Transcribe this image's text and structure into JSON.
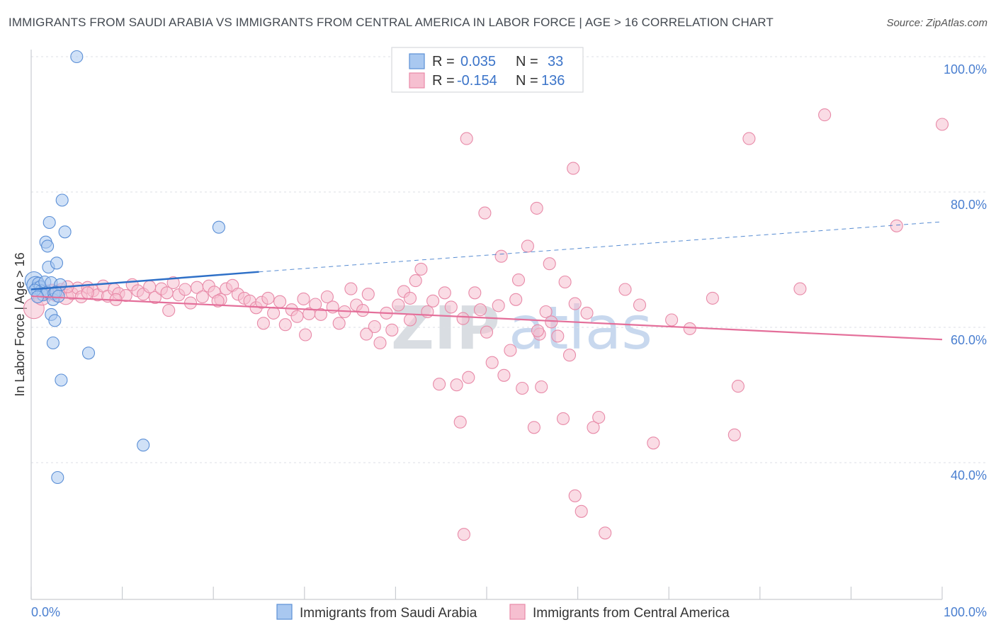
{
  "title": "IMMIGRANTS FROM SAUDI ARABIA VS IMMIGRANTS FROM CENTRAL AMERICA IN LABOR FORCE | AGE > 16 CORRELATION CHART",
  "source": "Source: ZipAtlas.com",
  "watermark": {
    "zip": "ZIP",
    "atlas": "atlas"
  },
  "colors": {
    "blue_fill": "#a9c8f0",
    "blue_stroke": "#5b8fd6",
    "blue_line": "#2d6fc7",
    "pink_fill": "#f6bfd0",
    "pink_stroke": "#e88aa8",
    "pink_line": "#e46f9a",
    "axis_label": "#4a7fd0",
    "grid": "#dcdfe4"
  },
  "legend_top": {
    "rows": [
      {
        "r_label": "R = ",
        "r_value": "0.035",
        "n_label": "N = ",
        "n_value": "33",
        "series": "blue"
      },
      {
        "r_label": "R = ",
        "r_value": "-0.154",
        "n_label": "N = ",
        "n_value": "136",
        "series": "pink"
      }
    ]
  },
  "chart_data": {
    "type": "scatter",
    "title": "IMMIGRANTS FROM SAUDI ARABIA VS IMMIGRANTS FROM CENTRAL AMERICA IN LABOR FORCE | AGE > 16 CORRELATION CHART",
    "xlabel": "",
    "ylabel": "In Labor Force | Age > 16",
    "xlim": [
      0,
      100
    ],
    "ylim": [
      18,
      102
    ],
    "x_tick_labels": [
      "0.0%",
      "100.0%"
    ],
    "y_ticks": [
      40,
      60,
      80,
      100
    ],
    "y_tick_labels": [
      "40.0%",
      "60.0%",
      "80.0%",
      "100.0%"
    ],
    "grid": "horizontal dashed",
    "series": [
      {
        "name": "Immigrants from Saudi Arabia",
        "color": "blue",
        "R": 0.035,
        "N": 33,
        "trend": {
          "x0": 0,
          "y0": 65.6,
          "x1": 25,
          "y1": 68.2,
          "dash_to_x": 100,
          "dash_to_y": 75.6
        },
        "points": [
          [
            0.3,
            66.9,
            14
          ],
          [
            0.5,
            66.2,
            14
          ],
          [
            0.6,
            65.8,
            10
          ],
          [
            0.8,
            66.5,
            10
          ],
          [
            1.0,
            66.0,
            10
          ],
          [
            1.1,
            65.4,
            10
          ],
          [
            1.3,
            64.8,
            10
          ],
          [
            1.5,
            66.7,
            10
          ],
          [
            1.8,
            65.2,
            10
          ],
          [
            0.4,
            65.5,
            10
          ],
          [
            0.7,
            64.5,
            10
          ],
          [
            2.2,
            66.6,
            10
          ],
          [
            2.5,
            65.0,
            10
          ],
          [
            3.2,
            66.3,
            10
          ],
          [
            1.6,
            72.6,
            10
          ],
          [
            1.8,
            72.0,
            10
          ],
          [
            1.9,
            68.9,
            10
          ],
          [
            2.8,
            69.5,
            10
          ],
          [
            2.0,
            75.5,
            10
          ],
          [
            3.4,
            78.8,
            10
          ],
          [
            3.7,
            74.1,
            10
          ],
          [
            2.2,
            61.9,
            10
          ],
          [
            2.4,
            57.7,
            10
          ],
          [
            3.3,
            52.2,
            10
          ],
          [
            6.3,
            56.2,
            10
          ],
          [
            5.0,
            100.0,
            10
          ],
          [
            12.3,
            42.6,
            10
          ],
          [
            2.9,
            37.8,
            10
          ],
          [
            20.6,
            74.8,
            10
          ],
          [
            2.4,
            64.1,
            10
          ],
          [
            2.6,
            61.0,
            10
          ],
          [
            2.7,
            65.2,
            10
          ],
          [
            3.0,
            64.6,
            10
          ]
        ]
      },
      {
        "name": "Immigrants from Central America",
        "color": "pink",
        "R": -0.154,
        "N": 136,
        "trend": {
          "x0": 0,
          "y0": 64.6,
          "x1": 100,
          "y1": 58.2
        },
        "points": [
          [
            0.3,
            62.8,
            16
          ],
          [
            1.2,
            64.6,
            14
          ],
          [
            2.0,
            65.2,
            12
          ],
          [
            2.7,
            64.7,
            10
          ],
          [
            3.3,
            65.6,
            10
          ],
          [
            3.8,
            64.5,
            12
          ],
          [
            4.5,
            65.0,
            10
          ],
          [
            5.1,
            65.8,
            10
          ],
          [
            5.5,
            64.5,
            10
          ],
          [
            6.2,
            65.9,
            10
          ],
          [
            6.8,
            65.4,
            10
          ],
          [
            7.3,
            64.8,
            10
          ],
          [
            7.9,
            66.1,
            10
          ],
          [
            8.4,
            64.6,
            10
          ],
          [
            9.1,
            65.6,
            10
          ],
          [
            9.6,
            65.0,
            10
          ],
          [
            10.4,
            64.7,
            10
          ],
          [
            11.1,
            66.3,
            10
          ],
          [
            11.7,
            65.4,
            10
          ],
          [
            12.3,
            64.9,
            10
          ],
          [
            13.0,
            66.0,
            10
          ],
          [
            13.6,
            64.4,
            10
          ],
          [
            14.3,
            65.7,
            10
          ],
          [
            14.9,
            65.1,
            10
          ],
          [
            15.6,
            66.6,
            10
          ],
          [
            16.2,
            64.8,
            10
          ],
          [
            16.9,
            65.6,
            10
          ],
          [
            17.5,
            63.6,
            10
          ],
          [
            18.2,
            65.9,
            10
          ],
          [
            18.8,
            64.5,
            10
          ],
          [
            19.5,
            66.1,
            10
          ],
          [
            20.1,
            65.2,
            10
          ],
          [
            20.8,
            64.1,
            10
          ],
          [
            21.4,
            65.7,
            10
          ],
          [
            22.1,
            66.2,
            10
          ],
          [
            22.7,
            64.9,
            10
          ],
          [
            23.4,
            64.3,
            10
          ],
          [
            24.0,
            63.9,
            10
          ],
          [
            24.7,
            62.9,
            10
          ],
          [
            25.3,
            63.7,
            10
          ],
          [
            26.0,
            64.3,
            10
          ],
          [
            26.6,
            62.1,
            10
          ],
          [
            27.3,
            63.8,
            10
          ],
          [
            27.9,
            60.4,
            10
          ],
          [
            28.6,
            62.6,
            10
          ],
          [
            29.2,
            61.6,
            10
          ],
          [
            29.9,
            64.2,
            10
          ],
          [
            30.5,
            62.0,
            10
          ],
          [
            31.2,
            63.4,
            10
          ],
          [
            31.8,
            61.9,
            10
          ],
          [
            32.5,
            64.5,
            10
          ],
          [
            33.1,
            63.0,
            10
          ],
          [
            33.8,
            60.6,
            10
          ],
          [
            34.4,
            62.3,
            10
          ],
          [
            35.1,
            65.7,
            10
          ],
          [
            35.7,
            63.3,
            10
          ],
          [
            36.4,
            62.5,
            10
          ],
          [
            37.0,
            64.9,
            10
          ],
          [
            37.7,
            60.1,
            10
          ],
          [
            38.3,
            57.7,
            10
          ],
          [
            39.0,
            62.1,
            10
          ],
          [
            39.6,
            59.6,
            10
          ],
          [
            40.3,
            63.3,
            10
          ],
          [
            40.9,
            65.3,
            10
          ],
          [
            41.6,
            64.3,
            10
          ],
          [
            42.2,
            66.9,
            10
          ],
          [
            42.8,
            68.6,
            10
          ],
          [
            43.5,
            62.3,
            10
          ],
          [
            44.1,
            63.9,
            10
          ],
          [
            44.8,
            51.6,
            10
          ],
          [
            45.4,
            65.1,
            10
          ],
          [
            46.1,
            63.0,
            10
          ],
          [
            46.7,
            51.5,
            10
          ],
          [
            47.4,
            61.3,
            10
          ],
          [
            48.0,
            52.6,
            10
          ],
          [
            48.7,
            65.1,
            10
          ],
          [
            49.3,
            62.6,
            10
          ],
          [
            50.0,
            59.3,
            10
          ],
          [
            50.6,
            54.8,
            10
          ],
          [
            51.3,
            63.2,
            10
          ],
          [
            51.9,
            52.9,
            10
          ],
          [
            52.6,
            56.6,
            10
          ],
          [
            53.2,
            64.1,
            10
          ],
          [
            53.9,
            51.0,
            10
          ],
          [
            54.5,
            72.0,
            10
          ],
          [
            55.2,
            45.2,
            10
          ],
          [
            55.8,
            59.0,
            10
          ],
          [
            56.5,
            62.3,
            10
          ],
          [
            57.1,
            60.8,
            10
          ],
          [
            57.8,
            58.7,
            10
          ],
          [
            58.4,
            46.5,
            10
          ],
          [
            59.1,
            55.9,
            10
          ],
          [
            59.7,
            63.5,
            10
          ],
          [
            60.4,
            32.8,
            10
          ],
          [
            61.0,
            62.1,
            10
          ],
          [
            61.7,
            45.2,
            10
          ],
          [
            62.3,
            46.7,
            10
          ],
          [
            63.0,
            29.6,
            10
          ],
          [
            65.2,
            65.6,
            10
          ],
          [
            66.8,
            63.3,
            10
          ],
          [
            68.3,
            42.9,
            10
          ],
          [
            70.3,
            61.1,
            10
          ],
          [
            72.3,
            59.8,
            10
          ],
          [
            74.8,
            64.3,
            10
          ],
          [
            77.2,
            44.1,
            10
          ],
          [
            77.6,
            51.3,
            10
          ],
          [
            78.8,
            87.9,
            10
          ],
          [
            84.4,
            65.7,
            10
          ],
          [
            87.1,
            91.4,
            10
          ],
          [
            95.0,
            75.0,
            10
          ],
          [
            100.0,
            90.0,
            10
          ],
          [
            47.8,
            87.9,
            10
          ],
          [
            59.5,
            83.5,
            10
          ],
          [
            49.8,
            76.9,
            10
          ],
          [
            55.5,
            77.6,
            10
          ],
          [
            51.6,
            70.5,
            10
          ],
          [
            53.5,
            67.0,
            10
          ],
          [
            56.9,
            69.4,
            10
          ],
          [
            58.6,
            66.7,
            10
          ],
          [
            47.1,
            46.0,
            10
          ],
          [
            47.5,
            29.4,
            10
          ],
          [
            56.0,
            51.2,
            10
          ],
          [
            59.7,
            35.1,
            10
          ],
          [
            55.6,
            59.5,
            10
          ],
          [
            41.6,
            61.1,
            10
          ],
          [
            36.8,
            59.0,
            10
          ],
          [
            25.5,
            60.6,
            10
          ],
          [
            30.1,
            58.9,
            10
          ],
          [
            20.5,
            63.9,
            10
          ],
          [
            15.1,
            62.5,
            10
          ],
          [
            9.3,
            64.1,
            10
          ],
          [
            6.2,
            65.1,
            10
          ],
          [
            4.0,
            66.0,
            10
          ],
          [
            3.0,
            65.3,
            10
          ],
          [
            2.3,
            65.5,
            10
          ],
          [
            1.6,
            65.0,
            10
          ]
        ]
      }
    ]
  },
  "bottom_legend": [
    {
      "label": "Immigrants from Saudi Arabia",
      "series": "blue"
    },
    {
      "label": "Immigrants from Central America",
      "series": "pink"
    }
  ]
}
